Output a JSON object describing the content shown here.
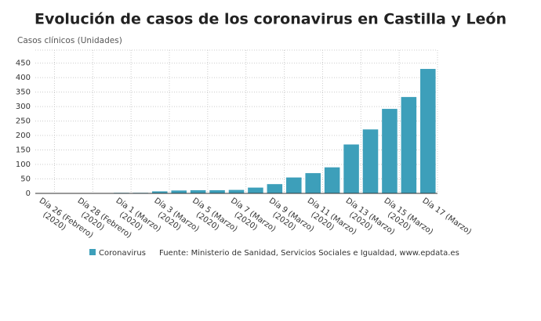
{
  "chart_data": {
    "type": "bar",
    "title": "Evolución de casos de los coronavirus en Castilla y León",
    "y_label": "Casos clínicos (Unidades)",
    "categories": [
      [
        "Día 26 (Febrero)",
        "(2020)"
      ],
      null,
      [
        "Día 28 (Febrero)",
        "(2020)"
      ],
      null,
      [
        "Día 1 (Marzo)",
        "(2020)"
      ],
      null,
      [
        "Día 3 (Marzo)",
        "(2020)"
      ],
      null,
      [
        "Día 5 (Marzo)",
        "(2020)"
      ],
      null,
      [
        "Día 7 (Marzo)",
        "(2020)"
      ],
      null,
      [
        "Día 9 (Marzo)",
        "(2020)"
      ],
      null,
      [
        "Día 11 (Marzo)",
        "(2020)"
      ],
      null,
      [
        "Día 13 (Marzo)",
        "(2020)"
      ],
      null,
      [
        "Día 15 (Marzo)",
        "(2020)"
      ],
      null,
      [
        "Día 17 (Marzo)"
      ]
    ],
    "series": [
      {
        "name": "Coronavirus",
        "color": "#3d9fba",
        "values": [
          0,
          0,
          1,
          1,
          2,
          2,
          7,
          10,
          11,
          11,
          12,
          20,
          32,
          55,
          70,
          90,
          169,
          221,
          292,
          333,
          430
        ]
      }
    ],
    "source": "Fuente: Ministerio de Sanidad, Servicios Sociales e Igualdad, www.epdata.es",
    "ylim": [
      0,
      495
    ],
    "yticks": [
      0,
      50,
      100,
      150,
      200,
      250,
      300,
      350,
      400,
      450
    ],
    "grid": true
  }
}
